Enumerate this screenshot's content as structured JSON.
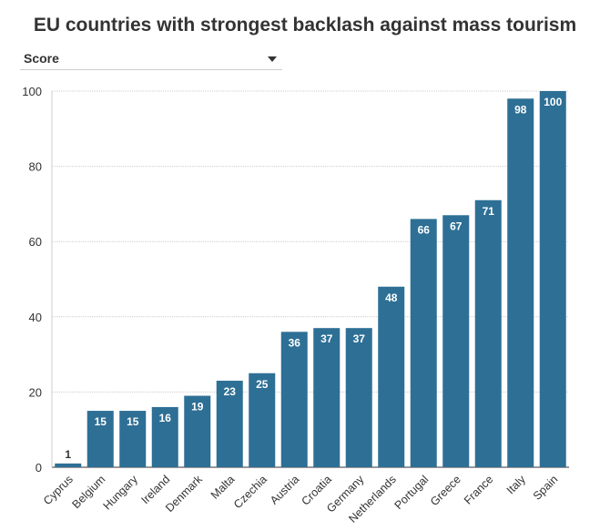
{
  "header": {
    "title": "EU countries with strongest backlash against mass tourism"
  },
  "selector": {
    "value": "Score",
    "icon": "chevron-down-icon"
  },
  "colors": {
    "bar": "#2e6f95",
    "bar_label": "#ffffff",
    "grid": "#cccccc",
    "axis": "#333333"
  },
  "chart_data": {
    "type": "bar",
    "title": "EU countries with strongest backlash against mass tourism",
    "xlabel": "",
    "ylabel": "",
    "ylim": [
      0,
      100
    ],
    "yticks": [
      0,
      20,
      40,
      60,
      80,
      100
    ],
    "grid": true,
    "categories": [
      "Cyprus",
      "Belgium",
      "Hungary",
      "Ireland",
      "Denmark",
      "Malta",
      "Czechia",
      "Austria",
      "Croatia",
      "Germany",
      "Netherlands",
      "Portugal",
      "Greece",
      "France",
      "Italy",
      "Spain"
    ],
    "values": [
      1,
      15,
      15,
      16,
      19,
      23,
      25,
      36,
      37,
      37,
      48,
      66,
      67,
      71,
      98,
      100
    ]
  }
}
